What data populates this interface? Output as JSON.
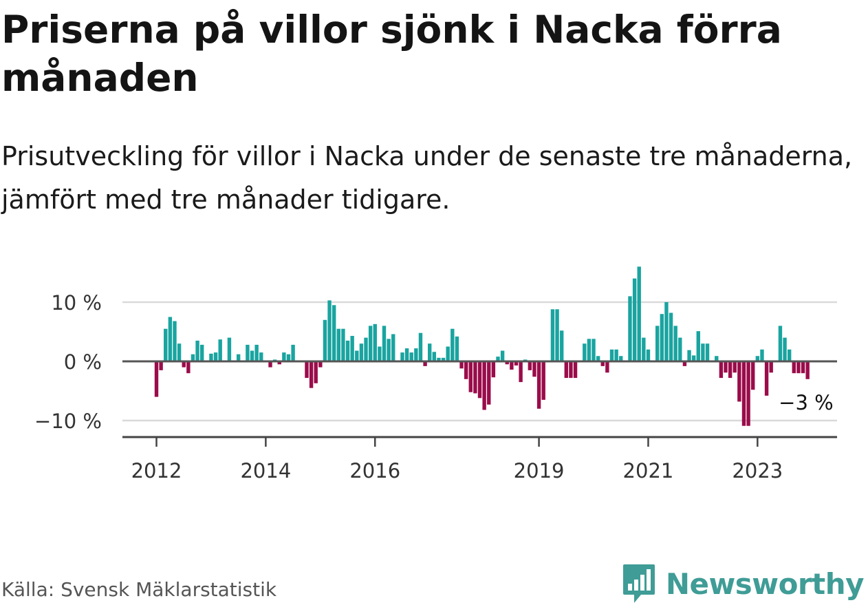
{
  "title": "Priserna på villor sjönk i Nacka förra månaden",
  "subtitle": "Prisutveckling för villor i Nacka under de senaste tre månaderna, jämfört med tre månader tidigare.",
  "source": "Källa: Svensk Mäklarstatistik",
  "brand": {
    "name": "Newsworthy",
    "icon": "bar-chart-badge-icon"
  },
  "colors": {
    "positive": "#1aa4a0",
    "negative": "#9a0c4a",
    "grid": "#d9d9d9",
    "axis": "#444444",
    "text": "#333333",
    "brand": "#3f9c96"
  },
  "chart_data": {
    "type": "bar",
    "title": "Prisutveckling för villor i Nacka (%)",
    "xlabel": "",
    "ylabel": "",
    "unit": "%",
    "ylim": [
      -12.5,
      16
    ],
    "yticks": [
      {
        "value": 10,
        "label": "10 %"
      },
      {
        "value": 0,
        "label": "0 %"
      },
      {
        "value": -10,
        "label": "−10 %"
      }
    ],
    "start": "2012-01",
    "end": "2023-12",
    "xticks": [
      {
        "year": 2012,
        "label": "2012"
      },
      {
        "year": 2014,
        "label": "2014"
      },
      {
        "year": 2016,
        "label": "2016"
      },
      {
        "year": 2019,
        "label": "2019"
      },
      {
        "year": 2021,
        "label": "2021"
      },
      {
        "year": 2023,
        "label": "2023"
      }
    ],
    "last_value_label": "−3 %",
    "values": [
      -6,
      -1.5,
      5.5,
      7.5,
      6.8,
      3,
      -1,
      -2,
      1.2,
      3.5,
      2.8,
      null,
      1.3,
      1.5,
      3.7,
      null,
      4,
      null,
      1.2,
      null,
      2.8,
      1.8,
      2.8,
      1.5,
      null,
      -1,
      0.3,
      -0.5,
      1.5,
      1.2,
      2.8,
      null,
      null,
      -2.8,
      -4.5,
      -3.7,
      -1,
      7,
      10.3,
      9.5,
      5.5,
      5.5,
      3.5,
      4.3,
      1.8,
      3,
      4,
      6,
      6.3,
      2.5,
      6,
      3.8,
      4.6,
      null,
      1.5,
      2.2,
      1.5,
      2.2,
      4.8,
      -0.8,
      3,
      1.6,
      0.6,
      0.6,
      2.5,
      5.5,
      4.2,
      -1.2,
      -3,
      -5.2,
      -5.4,
      -6.2,
      -8.2,
      -7.3,
      -2.7,
      0.8,
      1.8,
      -0.5,
      -1.4,
      -0.7,
      -3.5,
      0.3,
      -1.5,
      -2.6,
      -8,
      -6.5,
      null,
      8.8,
      8.8,
      5.2,
      -2.8,
      -2.8,
      -2.8,
      null,
      3,
      3.8,
      3.8,
      0.9,
      -0.8,
      -1.9,
      2,
      2,
      0.9,
      null,
      11,
      14,
      16,
      4,
      2,
      null,
      6,
      8,
      10,
      8.2,
      6,
      4,
      -0.8,
      1.9,
      1,
      5.1,
      3,
      3,
      null,
      0.9,
      -2.8,
      -1.9,
      -2.8,
      -1.9,
      -6.8,
      -10.9,
      -10.9,
      -4.8,
      0.9,
      2,
      -5.8,
      -1.9,
      null,
      6,
      4,
      2,
      -2,
      -2,
      -2,
      -3
    ]
  }
}
